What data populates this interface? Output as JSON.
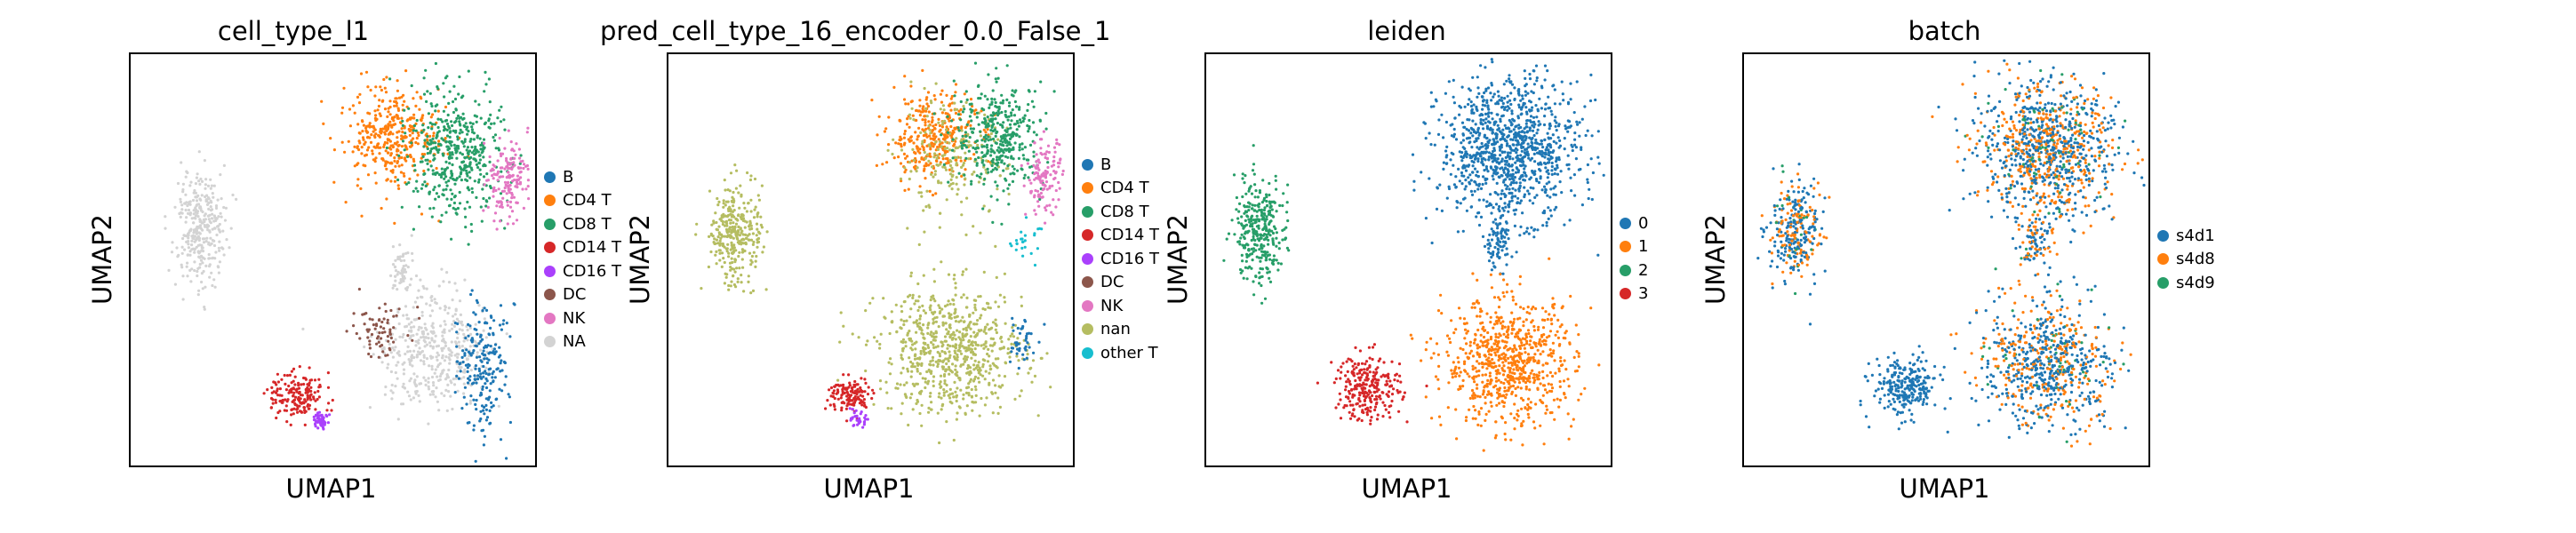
{
  "chart_data": [
    {
      "type": "scatter",
      "title": "cell_type_l1",
      "xlabel": "UMAP1",
      "ylabel": "UMAP2",
      "legend_position": "right",
      "legend": [
        {
          "label": "B",
          "color": "#1f77b4"
        },
        {
          "label": "CD4 T",
          "color": "#ff7f0e"
        },
        {
          "label": "CD8 T",
          "color": "#279e68"
        },
        {
          "label": "CD14 T",
          "color": "#d62728"
        },
        {
          "label": "CD16 T",
          "color": "#aa40fc"
        },
        {
          "label": "DC",
          "color": "#8c564b"
        },
        {
          "label": "NK",
          "color": "#e377c2"
        },
        {
          "label": "NA",
          "color": "#d3d3d3"
        }
      ],
      "clusters": [
        {
          "label": "NA",
          "cx": 0.17,
          "cy": 0.57,
          "rx": 0.07,
          "ry": 0.14,
          "n": 320
        },
        {
          "label": "CD4 T",
          "cx": 0.65,
          "cy": 0.8,
          "rx": 0.13,
          "ry": 0.13,
          "n": 380
        },
        {
          "label": "CD8 T",
          "cx": 0.8,
          "cy": 0.76,
          "rx": 0.13,
          "ry": 0.16,
          "n": 460
        },
        {
          "label": "NK",
          "cx": 0.93,
          "cy": 0.7,
          "rx": 0.06,
          "ry": 0.11,
          "n": 160
        },
        {
          "label": "NA",
          "cx": 0.75,
          "cy": 0.28,
          "rx": 0.15,
          "ry": 0.15,
          "n": 420
        },
        {
          "label": "B",
          "cx": 0.87,
          "cy": 0.24,
          "rx": 0.07,
          "ry": 0.17,
          "n": 210
        },
        {
          "label": "DC",
          "cx": 0.62,
          "cy": 0.33,
          "rx": 0.09,
          "ry": 0.07,
          "n": 70
        },
        {
          "label": "CD14 T",
          "cx": 0.41,
          "cy": 0.17,
          "rx": 0.07,
          "ry": 0.06,
          "n": 170
        },
        {
          "label": "CD16 T",
          "cx": 0.47,
          "cy": 0.11,
          "rx": 0.02,
          "ry": 0.025,
          "n": 50
        },
        {
          "label": "NA",
          "cx": 0.67,
          "cy": 0.48,
          "rx": 0.04,
          "ry": 0.07,
          "n": 60
        }
      ]
    },
    {
      "type": "scatter",
      "title": "pred_cell_type_16_encoder_0.0_False_1",
      "xlabel": "UMAP1",
      "ylabel": "UMAP2",
      "legend_position": "right",
      "legend": [
        {
          "label": "B",
          "color": "#1f77b4"
        },
        {
          "label": "CD4 T",
          "color": "#ff7f0e"
        },
        {
          "label": "CD8 T",
          "color": "#279e68"
        },
        {
          "label": "CD14 T",
          "color": "#d62728"
        },
        {
          "label": "CD16 T",
          "color": "#aa40fc"
        },
        {
          "label": "DC",
          "color": "#8c564b"
        },
        {
          "label": "NK",
          "color": "#e377c2"
        },
        {
          "label": "nan",
          "color": "#b5bd61"
        },
        {
          "label": "other T",
          "color": "#17becf"
        }
      ],
      "clusters": [
        {
          "label": "nan",
          "cx": 0.17,
          "cy": 0.57,
          "rx": 0.07,
          "ry": 0.14,
          "n": 320
        },
        {
          "label": "CD4 T",
          "cx": 0.65,
          "cy": 0.8,
          "rx": 0.12,
          "ry": 0.12,
          "n": 330
        },
        {
          "label": "nan",
          "cx": 0.7,
          "cy": 0.74,
          "rx": 0.15,
          "ry": 0.15,
          "n": 200
        },
        {
          "label": "CD8 T",
          "cx": 0.82,
          "cy": 0.8,
          "rx": 0.12,
          "ry": 0.14,
          "n": 380
        },
        {
          "label": "NK",
          "cx": 0.93,
          "cy": 0.7,
          "rx": 0.05,
          "ry": 0.1,
          "n": 130
        },
        {
          "label": "nan",
          "cx": 0.7,
          "cy": 0.28,
          "rx": 0.2,
          "ry": 0.17,
          "n": 720
        },
        {
          "label": "B",
          "cx": 0.87,
          "cy": 0.3,
          "rx": 0.04,
          "ry": 0.08,
          "n": 40
        },
        {
          "label": "CD14 T",
          "cx": 0.45,
          "cy": 0.17,
          "rx": 0.06,
          "ry": 0.05,
          "n": 130
        },
        {
          "label": "CD16 T",
          "cx": 0.47,
          "cy": 0.11,
          "rx": 0.02,
          "ry": 0.02,
          "n": 35
        },
        {
          "label": "other T",
          "cx": 0.88,
          "cy": 0.55,
          "rx": 0.04,
          "ry": 0.05,
          "n": 25
        }
      ]
    },
    {
      "type": "scatter",
      "title": "leiden",
      "xlabel": "UMAP1",
      "ylabel": "UMAP2",
      "legend_position": "right",
      "legend": [
        {
          "label": "0",
          "color": "#1f77b4"
        },
        {
          "label": "1",
          "color": "#ff7f0e"
        },
        {
          "label": "2",
          "color": "#279e68"
        },
        {
          "label": "3",
          "color": "#d62728"
        }
      ],
      "clusters": [
        {
          "label": "2",
          "cx": 0.13,
          "cy": 0.57,
          "rx": 0.07,
          "ry": 0.14,
          "n": 320
        },
        {
          "label": "0",
          "cx": 0.75,
          "cy": 0.77,
          "rx": 0.19,
          "ry": 0.19,
          "n": 1050
        },
        {
          "label": "0",
          "cx": 0.72,
          "cy": 0.54,
          "rx": 0.04,
          "ry": 0.07,
          "n": 80
        },
        {
          "label": "1",
          "cx": 0.75,
          "cy": 0.25,
          "rx": 0.18,
          "ry": 0.17,
          "n": 760
        },
        {
          "label": "3",
          "cx": 0.4,
          "cy": 0.19,
          "rx": 0.09,
          "ry": 0.09,
          "n": 260
        }
      ]
    },
    {
      "type": "scatter",
      "title": "batch",
      "xlabel": "UMAP1",
      "ylabel": "UMAP2",
      "legend_position": "right",
      "legend": [
        {
          "label": "s4d1",
          "color": "#1f77b4"
        },
        {
          "label": "s4d8",
          "color": "#ff7f0e"
        },
        {
          "label": "s4d9",
          "color": "#279e68"
        }
      ],
      "clusters": [
        {
          "label": "mix",
          "cx": 0.13,
          "cy": 0.57,
          "rx": 0.07,
          "ry": 0.14,
          "n": 320
        },
        {
          "label": "mix",
          "cx": 0.75,
          "cy": 0.77,
          "rx": 0.19,
          "ry": 0.19,
          "n": 1050
        },
        {
          "label": "mix",
          "cx": 0.72,
          "cy": 0.54,
          "rx": 0.04,
          "ry": 0.07,
          "n": 80
        },
        {
          "label": "mix",
          "cx": 0.75,
          "cy": 0.25,
          "rx": 0.18,
          "ry": 0.17,
          "n": 760
        },
        {
          "label": "s4d1",
          "cx": 0.4,
          "cy": 0.19,
          "rx": 0.09,
          "ry": 0.08,
          "n": 260
        }
      ]
    }
  ]
}
